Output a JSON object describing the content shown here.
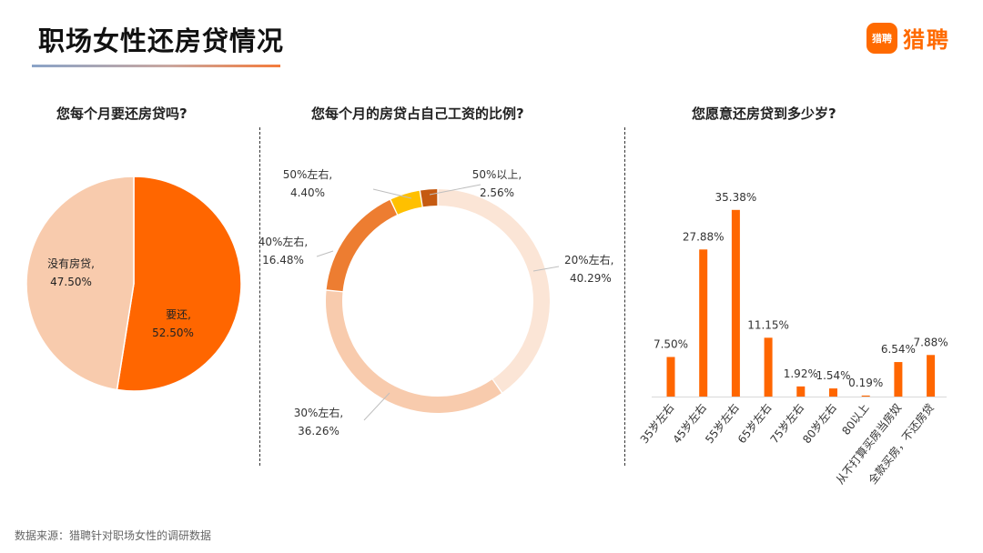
{
  "header": {
    "title": "职场女性还房贷情况"
  },
  "logo": {
    "mark": "猎聘",
    "text": "猎聘"
  },
  "colors": {
    "accent": "#ff6a00"
  },
  "footer": {
    "source": "数据来源：猎聘针对职场女性的调研数据"
  },
  "chart_data": [
    {
      "type": "pie",
      "title": "您每个月要还房贷吗?",
      "slices": [
        {
          "name": "要还,",
          "value": 52.5,
          "label": "52.50%",
          "color": "#ff6600"
        },
        {
          "name": "没有房贷,",
          "value": 47.5,
          "label": "47.50%",
          "color": "#f8cbad"
        }
      ]
    },
    {
      "type": "donut",
      "title": "您每个月的房贷占自己工资的比例?",
      "slices": [
        {
          "name": "20%左右,",
          "value": 40.29,
          "label": "40.29%",
          "color": "#fbe5d6"
        },
        {
          "name": "30%左右,",
          "value": 36.26,
          "label": "36.26%",
          "color": "#f8cbad"
        },
        {
          "name": "40%左右,",
          "value": 16.48,
          "label": "16.48%",
          "color": "#ed7d31"
        },
        {
          "name": "50%左右,",
          "value": 4.4,
          "label": "4.40%",
          "color": "#ffc000"
        },
        {
          "name": "50%以上,",
          "value": 2.56,
          "label": "2.56%",
          "color": "#c55a11"
        }
      ]
    },
    {
      "type": "bar",
      "title": "您愿意还房贷到多少岁?",
      "categories": [
        "35岁左右",
        "45岁左右",
        "55岁左右",
        "65岁左右",
        "75岁左右",
        "80岁左右",
        "80以上",
        "从不打算买房当房奴",
        "全款买房，不还房贷"
      ],
      "values": [
        7.5,
        27.88,
        35.38,
        11.15,
        1.92,
        1.54,
        0.19,
        6.54,
        7.88
      ],
      "labels": [
        "7.50%",
        "27.88%",
        "35.38%",
        "11.15%",
        "1.92%",
        "1.54%",
        "0.19%",
        "6.54%",
        "7.88%"
      ],
      "ylim": [
        0,
        40
      ],
      "color": "#ff6600"
    }
  ]
}
